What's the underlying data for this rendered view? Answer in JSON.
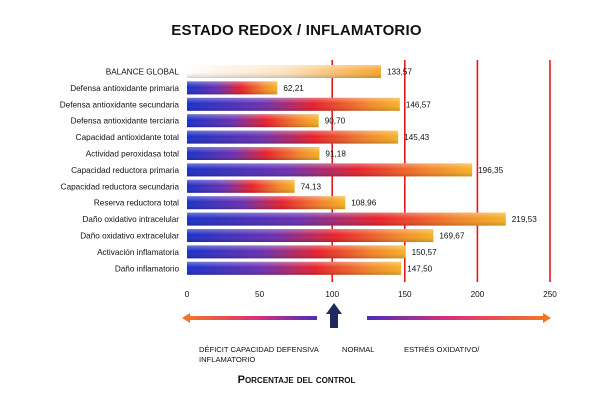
{
  "chart_data": {
    "type": "bar",
    "orientation": "horizontal",
    "title": "ESTADO REDOX / INFLAMATORIO",
    "xlabel": "Porcentaje del control",
    "categories": [
      "BALANCE GLOBAL",
      "Defensa antioxidante primaria",
      "Defensa antioxidante secundaria",
      "Defensa antioxidante terciaria",
      "Capacidad antioxidante total",
      "Actividad peroxidasa total",
      "Capacidad reductora primaria",
      "Capacidad reductora secundaria",
      "Reserva reductora total",
      "Daño oxidativo intracelular",
      "Daño oxidativo extracelular",
      "Activación inflamatoria",
      "Daño inflamatorio"
    ],
    "values": [
      133.57,
      62.21,
      146.57,
      90.7,
      145.43,
      91.18,
      196.35,
      74.13,
      108.96,
      219.53,
      169.67,
      150.57,
      147.5
    ],
    "value_labels": [
      "133,57",
      "62,21",
      "146,57",
      "90,70",
      "145,43",
      "91,18",
      "196,35",
      "74,13",
      "108,96",
      "219,53",
      "169,67",
      "150,57",
      "147,50"
    ],
    "xlim": [
      0,
      250
    ],
    "xticks": [
      "0",
      "50",
      "100",
      "150",
      "200",
      "250"
    ],
    "reference_lines": [
      100,
      150,
      200,
      250
    ],
    "legend_arrows": {
      "left": "DÉFICIT CAPACIDAD DEFENSIVA INFLAMATORIO",
      "center": "NORMAL",
      "right": "ESTRÉS OXIDATIVO/"
    },
    "colors": {
      "reference_line": "#e31b1b",
      "gradient_low": "#1a2fc9",
      "gradient_mid": "#e8202a",
      "gradient_high": "#f7b224",
      "normal_arrow": "#1d2b5a"
    }
  }
}
